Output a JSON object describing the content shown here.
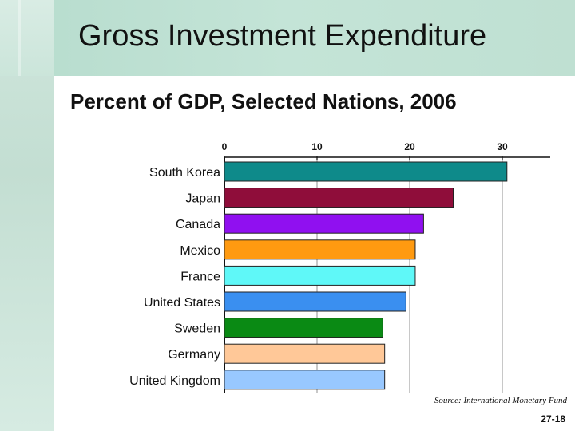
{
  "slide": {
    "title": "Gross Investment Expenditure",
    "subtitle": "Percent of GDP, Selected Nations, 2006",
    "source": "Source: International Monetary Fund",
    "page_number": "27-18"
  },
  "chart_data": {
    "type": "bar",
    "orientation": "horizontal",
    "categories": [
      "South Korea",
      "Japan",
      "Canada",
      "Mexico",
      "France",
      "United States",
      "Sweden",
      "Germany",
      "United Kingdom"
    ],
    "values": [
      30.5,
      24.7,
      21.5,
      20.6,
      20.6,
      19.6,
      17.1,
      17.3,
      17.3
    ],
    "colors": [
      "#0e8a8a",
      "#8f0d3a",
      "#9010f0",
      "#ff9a10",
      "#5ff8f8",
      "#3a8ff0",
      "#0a8a14",
      "#ffc898",
      "#98c8ff"
    ],
    "xticks": [
      0,
      10,
      20,
      30
    ],
    "xlim": [
      0,
      35
    ],
    "xaxis_position": "top",
    "grid": true
  }
}
